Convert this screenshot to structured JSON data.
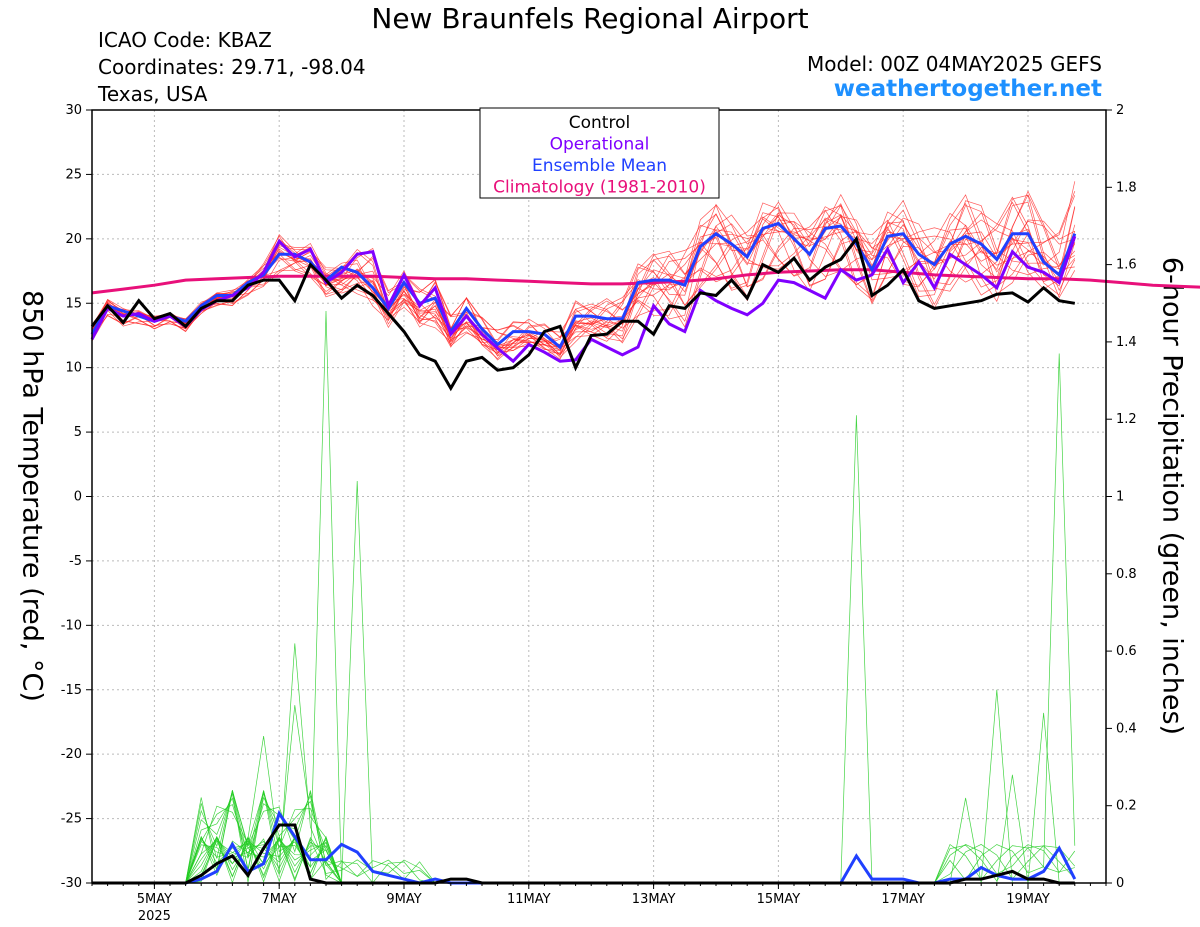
{
  "header": {
    "title": "New Braunfels Regional Airport",
    "icao": "ICAO Code: KBAZ",
    "coords": "Coordinates: 29.71, -98.04",
    "region": "Texas, USA",
    "model": "Model: 00Z 04MAY2025 GEFS",
    "site": "weathertogether.net"
  },
  "colors": {
    "control": "#000000",
    "operational": "#8000ff",
    "ensemble_mean": "#2040ff",
    "climatology": "#e8107a",
    "members_temp": "#ff2020",
    "members_precip": "#22cc22",
    "site": "#1e90ff"
  },
  "chart_data": {
    "type": "line",
    "ylabel_left": "850 hPa Temperature (red, °C)",
    "ylabel_right": "6-hour Precipitation (green, inches)",
    "ylim_left": [
      -30,
      30
    ],
    "ylim_right": [
      0,
      2
    ],
    "yticks_left": [
      "30",
      "25",
      "20",
      "15",
      "10",
      "5",
      "0",
      "-5",
      "-10",
      "-15",
      "-20",
      "-25",
      "-30"
    ],
    "yticks_right": [
      "2",
      "1.8",
      "1.6",
      "1.4",
      "1.2",
      "1",
      "0.8",
      "0.6",
      "0.4",
      "0.2",
      "0"
    ],
    "x_label_sub": "2025",
    "x_start": "2025-05-04T00Z",
    "x_step_hours": 6,
    "x_ticks": [
      {
        "label": "5MAY",
        "step": 4
      },
      {
        "label": "7MAY",
        "step": 12
      },
      {
        "label": "9MAY",
        "step": 20
      },
      {
        "label": "11MAY",
        "step": 28
      },
      {
        "label": "13MAY",
        "step": 36
      },
      {
        "label": "15MAY",
        "step": 44
      },
      {
        "label": "17MAY",
        "step": 52
      },
      {
        "label": "19MAY",
        "step": 60
      }
    ],
    "legend": {
      "placement": "top-center",
      "entries": [
        {
          "label": "Control",
          "color": "#000000"
        },
        {
          "label": "Operational",
          "color": "#8000ff"
        },
        {
          "label": "Ensemble Mean",
          "color": "#2040ff"
        },
        {
          "label": "Climatology (1981-2010)",
          "color": "#e8107a"
        }
      ]
    },
    "temperature": {
      "control": [
        13.2,
        14.8,
        13.5,
        15.2,
        13.8,
        14.2,
        13.2,
        14.6,
        15.2,
        15.2,
        16.4,
        16.8,
        16.8,
        15.2,
        18.0,
        16.8,
        15.4,
        16.4,
        15.6,
        14.2,
        12.8,
        11.0,
        10.5,
        8.4,
        10.5,
        10.8,
        9.8,
        10.0,
        11.0,
        12.8,
        13.2,
        10.0,
        12.5,
        12.6,
        13.6,
        13.6,
        12.6,
        14.8,
        14.6,
        15.8,
        15.6,
        16.8,
        15.4,
        18.0,
        17.4,
        18.5,
        16.8,
        17.8,
        18.4,
        20.0,
        15.6,
        16.4,
        17.6,
        15.2,
        14.6,
        14.8,
        15.0,
        15.2,
        15.7,
        15.8,
        15.1,
        16.2,
        15.2,
        15.0
      ],
      "operational": [
        12.2,
        14.6,
        14.0,
        14.2,
        13.6,
        14.0,
        13.2,
        14.5,
        15.2,
        15.6,
        16.2,
        17.4,
        19.8,
        18.6,
        19.2,
        16.6,
        17.4,
        18.8,
        19.0,
        14.8,
        17.2,
        14.8,
        16.2,
        12.6,
        14.0,
        12.6,
        11.5,
        10.5,
        11.8,
        11.2,
        10.5,
        10.6,
        12.2,
        11.6,
        11.0,
        11.6,
        14.8,
        13.4,
        12.8,
        16.0,
        15.2,
        14.6,
        14.1,
        15.0,
        16.8,
        16.6,
        16.0,
        15.4,
        17.6,
        16.8,
        17.2,
        19.2,
        16.6,
        18.2,
        16.2,
        18.8,
        18.0,
        17.2,
        16.2,
        19.0,
        17.8,
        17.4,
        16.6,
        20.2
      ],
      "ensemble_mean": [
        12.6,
        14.8,
        14.4,
        14.0,
        13.6,
        14.0,
        13.6,
        14.8,
        15.6,
        15.6,
        16.6,
        17.2,
        18.8,
        18.8,
        18.2,
        16.8,
        17.8,
        17.4,
        16.2,
        14.6,
        16.6,
        15.0,
        15.4,
        12.8,
        14.6,
        13.0,
        11.8,
        12.8,
        12.8,
        12.6,
        11.6,
        14.0,
        14.0,
        13.8,
        13.8,
        16.6,
        16.8,
        16.8,
        16.4,
        19.4,
        20.4,
        19.6,
        18.6,
        20.8,
        21.2,
        20.0,
        18.8,
        20.8,
        21.0,
        19.6,
        17.6,
        20.2,
        20.4,
        18.8,
        18.0,
        19.6,
        20.2,
        19.6,
        18.4,
        20.4,
        20.4,
        18.2,
        17.2,
        20.4
      ],
      "climatology": [
        15.8,
        16.1,
        16.4,
        16.8,
        16.9,
        17.0,
        17.1,
        17.1,
        17.1,
        17.1,
        17.0,
        16.9,
        16.9,
        16.8,
        16.7,
        16.6,
        16.5,
        16.5,
        16.6,
        16.7,
        16.9,
        17.2,
        17.4,
        17.5,
        17.6,
        17.6,
        17.4,
        17.2,
        17.1,
        17.0,
        16.9,
        16.9,
        16.8,
        16.6,
        16.4,
        16.3,
        16.2,
        16.2,
        16.4,
        16.6,
        16.9,
        17.0
      ],
      "climatology_x_step_hours": 12,
      "members_spread": [
        [
          13.5,
          15.5,
          14.8,
          14.6,
          14.2,
          14.4,
          14.0,
          15.2,
          16.0,
          16.2,
          17.0,
          18.2,
          20.6,
          19.4,
          19.8,
          17.8,
          18.2,
          19.2,
          19.4,
          16.0,
          17.6,
          16.2,
          17.0,
          14.2,
          15.6,
          14.0,
          13.0,
          13.6,
          13.8,
          13.4,
          12.8,
          15.2,
          15.0,
          15.4,
          15.6,
          18.2,
          19.2,
          19.4,
          19.8,
          22.0,
          23.6,
          22.4,
          21.4,
          23.4,
          23.8,
          22.6,
          21.8,
          23.4,
          24.2,
          22.4,
          20.8,
          22.8,
          23.4,
          21.8,
          21.2,
          22.6,
          23.8,
          22.8,
          21.6,
          23.6,
          24.0,
          21.6,
          20.6,
          24.6
        ],
        [
          12.0,
          14.0,
          13.2,
          13.4,
          13.0,
          13.4,
          12.8,
          14.2,
          14.8,
          14.8,
          15.6,
          16.2,
          17.2,
          17.4,
          16.8,
          15.4,
          15.6,
          15.6,
          14.4,
          13.0,
          14.4,
          12.6,
          12.6,
          11.0,
          12.2,
          11.2,
          10.2,
          10.8,
          11.4,
          11.0,
          10.4,
          11.8,
          12.2,
          11.8,
          11.6,
          13.6,
          13.8,
          13.4,
          13.0,
          16.2,
          16.6,
          16.0,
          15.2,
          16.8,
          17.6,
          17.0,
          15.8,
          16.6,
          17.2,
          16.0,
          14.8,
          16.8,
          16.4,
          15.4,
          14.6,
          15.8,
          16.2,
          15.4,
          14.6,
          16.2,
          16.4,
          15.6,
          14.8,
          16.6
        ]
      ]
    },
    "precipitation": {
      "control": [
        0,
        0,
        0,
        0,
        0,
        0,
        0,
        0.02,
        0.05,
        0.07,
        0.02,
        0.09,
        0.15,
        0.15,
        0.01,
        0,
        0,
        0,
        0,
        0,
        0,
        0,
        0,
        0.01,
        0.01,
        0,
        0,
        0,
        0,
        0,
        0,
        0,
        0,
        0,
        0,
        0,
        0,
        0,
        0,
        0,
        0,
        0,
        0,
        0,
        0,
        0,
        0,
        0,
        0,
        0,
        0,
        0,
        0,
        0,
        0,
        0,
        0.01,
        0.01,
        0.02,
        0.03,
        0.01,
        0.01,
        0,
        0
      ],
      "ensemble_mean": [
        0,
        0,
        0,
        0,
        0,
        0,
        0,
        0.01,
        0.03,
        0.1,
        0.03,
        0.05,
        0.18,
        0.12,
        0.06,
        0.06,
        0.1,
        0.08,
        0.03,
        0.02,
        0.01,
        0,
        0.01,
        0,
        0,
        0,
        0,
        0,
        0,
        0,
        0,
        0,
        0,
        0,
        0,
        0,
        0,
        0,
        0,
        0,
        0,
        0,
        0,
        0,
        0,
        0,
        0,
        0,
        0,
        0.07,
        0.01,
        0.01,
        0.01,
        0,
        0,
        0.01,
        0.01,
        0.04,
        0.02,
        0.01,
        0.01,
        0.03,
        0.09,
        0.01
      ],
      "members_peaks": [
        {
          "step": 13,
          "value": 0.62
        },
        {
          "step": 15,
          "value": 1.48
        },
        {
          "step": 17,
          "value": 1.04
        },
        {
          "step": 13,
          "value": 0.46
        },
        {
          "step": 11,
          "value": 0.38
        },
        {
          "step": 9,
          "value": 0.24
        },
        {
          "step": 49,
          "value": 1.21
        },
        {
          "step": 58,
          "value": 0.5
        },
        {
          "step": 62,
          "value": 1.37
        },
        {
          "step": 61,
          "value": 0.44
        },
        {
          "step": 56,
          "value": 0.22
        },
        {
          "step": 59,
          "value": 0.28
        }
      ]
    }
  }
}
